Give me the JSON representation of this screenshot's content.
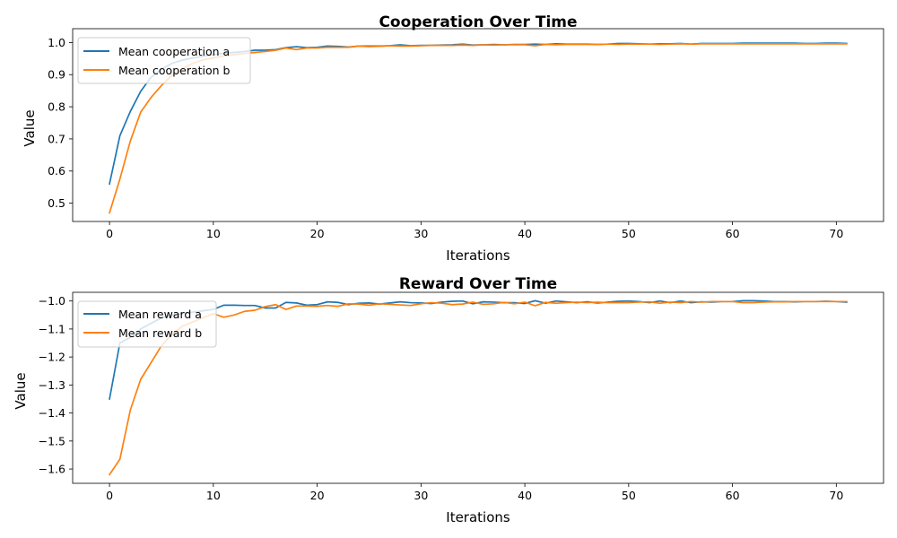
{
  "chart_data": [
    {
      "type": "line",
      "title": "Cooperation Over Time",
      "xlabel": "Iterations",
      "ylabel": "Value",
      "xlim": [
        -3.55,
        74.55
      ],
      "ylim": [
        0.443,
        1.043
      ],
      "xticks": [
        0,
        10,
        20,
        30,
        40,
        50,
        60,
        70
      ],
      "yticks": [
        0.5,
        0.6,
        0.7,
        0.8,
        0.9,
        1.0
      ],
      "ytick_labels": [
        "0.5",
        "0.6",
        "0.7",
        "0.8",
        "0.9",
        "1.0"
      ],
      "grid": false,
      "legend_loc": "upper left",
      "series": [
        {
          "name": "Mean cooperation a",
          "color": "#1f77b4",
          "values": [
            0.56,
            0.71,
            0.785,
            0.848,
            0.892,
            0.917,
            0.935,
            0.945,
            0.952,
            0.957,
            0.962,
            0.966,
            0.969,
            0.972,
            0.976,
            0.976,
            0.978,
            0.984,
            0.987,
            0.984,
            0.985,
            0.989,
            0.988,
            0.986,
            0.989,
            0.989,
            0.989,
            0.99,
            0.993,
            0.99,
            0.991,
            0.991,
            0.992,
            0.993,
            0.995,
            0.992,
            0.993,
            0.994,
            0.993,
            0.994,
            0.994,
            0.995,
            0.994,
            0.996,
            0.995,
            0.995,
            0.995,
            0.994,
            0.995,
            0.997,
            0.997,
            0.996,
            0.995,
            0.996,
            0.996,
            0.997,
            0.995,
            0.997,
            0.997,
            0.997,
            0.997,
            0.998,
            0.998,
            0.998,
            0.998,
            0.998,
            0.998,
            0.997,
            0.997,
            0.998,
            0.998,
            0.997
          ]
        },
        {
          "name": "Mean cooperation b",
          "color": "#ff7f0e",
          "values": [
            0.47,
            0.575,
            0.693,
            0.783,
            0.829,
            0.866,
            0.898,
            0.918,
            0.935,
            0.946,
            0.952,
            0.958,
            0.962,
            0.966,
            0.969,
            0.972,
            0.976,
            0.983,
            0.978,
            0.983,
            0.983,
            0.985,
            0.985,
            0.985,
            0.989,
            0.987,
            0.988,
            0.99,
            0.989,
            0.989,
            0.99,
            0.991,
            0.991,
            0.991,
            0.992,
            0.991,
            0.993,
            0.992,
            0.993,
            0.993,
            0.993,
            0.99,
            0.994,
            0.993,
            0.994,
            0.994,
            0.994,
            0.994,
            0.995,
            0.994,
            0.995,
            0.995,
            0.995,
            0.994,
            0.995,
            0.996,
            0.995,
            0.996,
            0.996,
            0.996,
            0.996,
            0.996,
            0.996,
            0.996,
            0.996,
            0.996,
            0.996,
            0.996,
            0.996,
            0.996,
            0.996,
            0.996
          ]
        }
      ]
    },
    {
      "type": "line",
      "title": "Reward Over Time",
      "xlabel": "Iterations",
      "ylabel": "Value",
      "xlim": [
        -3.55,
        74.55
      ],
      "ylim": [
        -1.651,
        -0.969
      ],
      "xticks": [
        0,
        10,
        20,
        30,
        40,
        50,
        60,
        70
      ],
      "yticks": [
        -1.6,
        -1.5,
        -1.4,
        -1.3,
        -1.2,
        -1.1,
        -1.0
      ],
      "ytick_labels": [
        "−1.6",
        "−1.5",
        "−1.4",
        "−1.3",
        "−1.2",
        "−1.1",
        "−1.0"
      ],
      "grid": false,
      "legend_loc": "upper left",
      "series": [
        {
          "name": "Mean reward a",
          "color": "#1f77b4",
          "values": [
            -1.35,
            -1.15,
            -1.13,
            -1.1,
            -1.08,
            -1.06,
            -1.05,
            -1.045,
            -1.04,
            -1.035,
            -1.03,
            -1.015,
            -1.015,
            -1.016,
            -1.016,
            -1.025,
            -1.025,
            -1.005,
            -1.007,
            -1.015,
            -1.013,
            -1.003,
            -1.005,
            -1.013,
            -1.008,
            -1.007,
            -1.011,
            -1.007,
            -1.003,
            -1.006,
            -1.007,
            -1.009,
            -1.004,
            -1.001,
            -1.0,
            -1.01,
            -1.003,
            -1.004,
            -1.006,
            -1.006,
            -1.009,
            -0.999,
            -1.008,
            -1.0,
            -1.003,
            -1.006,
            -1.003,
            -1.007,
            -1.004,
            -1.001,
            -1.0,
            -1.002,
            -1.006,
            -1.0,
            -1.006,
            -1.0,
            -1.006,
            -1.003,
            -1.004,
            -1.002,
            -1.002,
            -0.999,
            -0.999,
            -1.0,
            -1.002,
            -1.002,
            -1.003,
            -1.002,
            -1.002,
            -1.001,
            -1.002,
            -1.004
          ]
        },
        {
          "name": "Mean reward b",
          "color": "#ff7f0e",
          "values": [
            -1.62,
            -1.565,
            -1.39,
            -1.28,
            -1.22,
            -1.16,
            -1.12,
            -1.09,
            -1.075,
            -1.06,
            -1.045,
            -1.058,
            -1.05,
            -1.037,
            -1.033,
            -1.02,
            -1.013,
            -1.03,
            -1.018,
            -1.018,
            -1.019,
            -1.016,
            -1.019,
            -1.01,
            -1.011,
            -1.015,
            -1.01,
            -1.012,
            -1.014,
            -1.016,
            -1.01,
            -1.006,
            -1.008,
            -1.013,
            -1.011,
            -1.004,
            -1.012,
            -1.01,
            -1.005,
            -1.01,
            -1.004,
            -1.017,
            -1.005,
            -1.008,
            -1.006,
            -1.004,
            -1.006,
            -1.004,
            -1.006,
            -1.006,
            -1.006,
            -1.004,
            -1.003,
            -1.008,
            -1.004,
            -1.006,
            -1.002,
            -1.004,
            -1.002,
            -1.002,
            -1.002,
            -1.006,
            -1.006,
            -1.004,
            -1.003,
            -1.003,
            -1.002,
            -1.002,
            -1.002,
            -1.002,
            -1.002,
            -1.002
          ]
        }
      ]
    }
  ]
}
